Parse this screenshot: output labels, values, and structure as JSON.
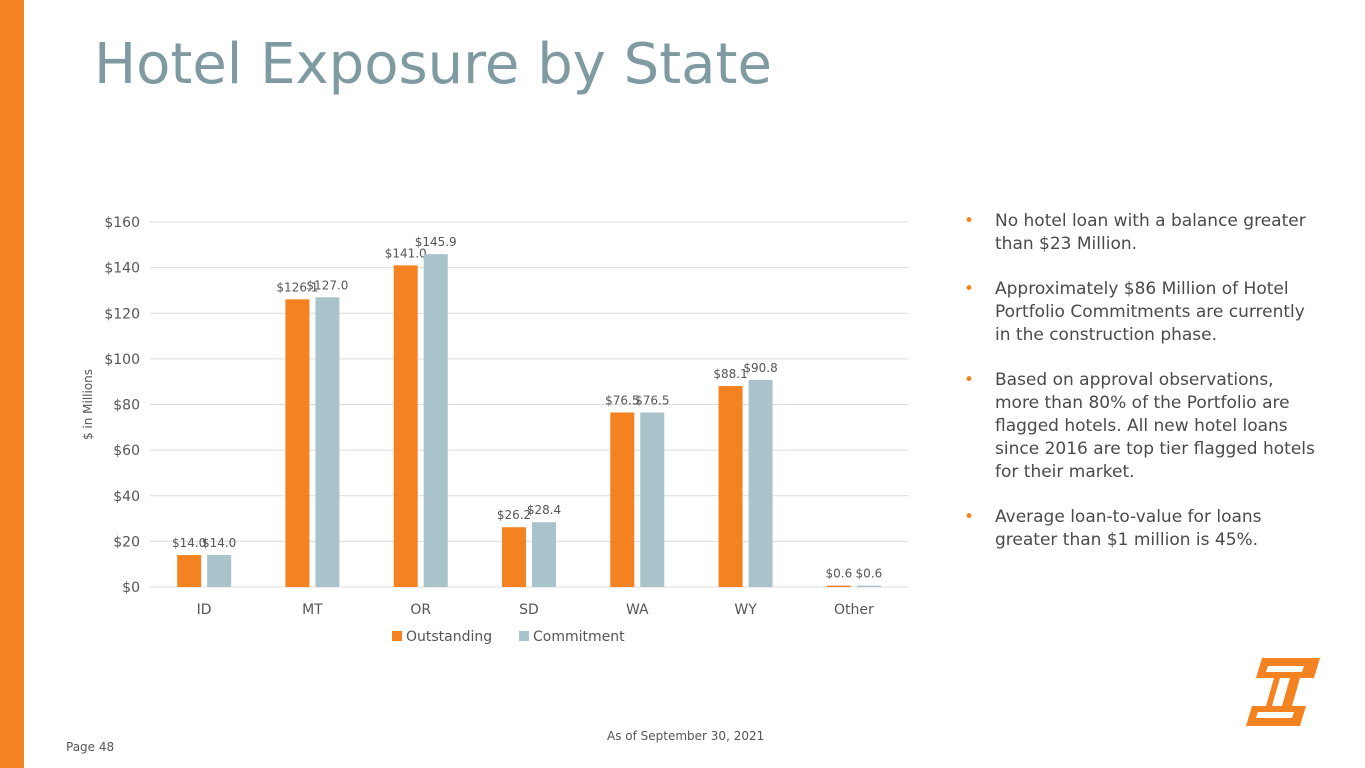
{
  "slide": {
    "title": "Hotel Exposure by State",
    "page_label": "Page 48",
    "as_of": "As of September 30, 2021"
  },
  "bullets": [
    "No hotel loan with a balance greater than $23 Million.",
    "Approximately $86 Million of Hotel Portfolio Commitments are currently in the construction phase.",
    "Based on approval observations, more than 80% of the Portfolio are flagged hotels. All new hotel loans since 2016 are top tier flagged hotels for their market.",
    "Average loan-to-value for loans greater than $1 million is 45%."
  ],
  "colors": {
    "accent": "#f58220",
    "title": "#7f9aa0",
    "commitment": "#a9c3ca"
  },
  "logo": {
    "icon": "company-logo-icon"
  },
  "chart_data": {
    "type": "bar",
    "categories": [
      "ID",
      "MT",
      "OR",
      "SD",
      "WA",
      "WY",
      "Other"
    ],
    "series": [
      {
        "name": "Outstanding",
        "color": "#f58220",
        "values": [
          14.0,
          126.1,
          141.0,
          26.2,
          76.5,
          88.1,
          0.6
        ],
        "labels": [
          "$14.0",
          "$126.1",
          "$141.0",
          "$26.2",
          "$76.5",
          "$88.1",
          "$0.6"
        ]
      },
      {
        "name": "Commitment",
        "color": "#a9c3ca",
        "values": [
          14.0,
          127.0,
          145.9,
          28.4,
          76.5,
          90.8,
          0.6
        ],
        "labels": [
          "$14.0",
          "$127.0",
          "$145.9",
          "$28.4",
          "$76.5",
          "$90.8",
          "$0.6"
        ]
      }
    ],
    "title": "",
    "xlabel": "",
    "ylabel": "$ in Millions",
    "ylim": [
      0,
      160
    ],
    "yticks": [
      0,
      20,
      40,
      60,
      80,
      100,
      120,
      140,
      160
    ],
    "ytick_labels": [
      "$0",
      "$20",
      "$40",
      "$60",
      "$80",
      "$100",
      "$120",
      "$140",
      "$160"
    ],
    "grid": true,
    "legend": "bottom"
  }
}
